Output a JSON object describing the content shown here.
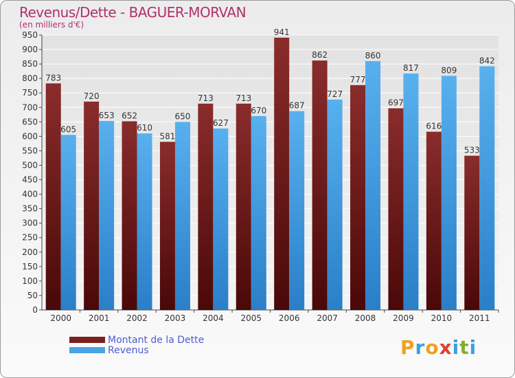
{
  "chart_data": {
    "type": "bar",
    "title": "Revenus/Dette - BAGUER-MORVAN",
    "subtitle": "(en milliers d'€)",
    "categories": [
      "2000",
      "2001",
      "2002",
      "2003",
      "2004",
      "2005",
      "2006",
      "2007",
      "2008",
      "2009",
      "2010",
      "2011"
    ],
    "series": [
      {
        "name": "Montant de la Dette",
        "color": "#7a1f1f",
        "values": [
          783,
          720,
          652,
          581,
          713,
          713,
          941,
          862,
          777,
          697,
          616,
          533
        ]
      },
      {
        "name": "Revenus",
        "color": "#4aa3e6",
        "values": [
          605,
          653,
          610,
          650,
          627,
          670,
          687,
          727,
          860,
          817,
          809,
          842
        ]
      }
    ],
    "ylim": [
      0,
      950
    ],
    "ytick_step": 50,
    "grid": true,
    "legend": "bottom-left"
  },
  "logo": {
    "letters": [
      "P",
      "r",
      "o",
      "x",
      "i",
      "t",
      "i"
    ],
    "colors": [
      "#f0a020",
      "#3aa0e0",
      "#f0a020",
      "#e04030",
      "#3aa0e0",
      "#80b030",
      "#3aa0e0"
    ]
  }
}
